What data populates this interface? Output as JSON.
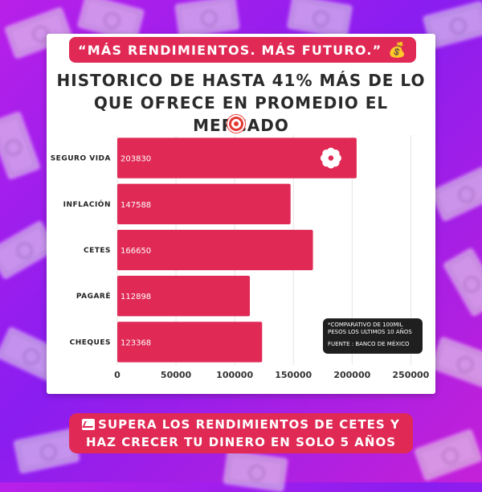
{
  "header": {
    "slogan": "“MÁS RENDIMIENTOS. MÁS FUTURO.”",
    "slogan_icon": "money-bag-icon",
    "title": "HISTORICO DE HASTA 41% MÁS DE LO QUE OFRECE EN PROMEDIO EL MERCADO",
    "title_icon": "target-icon"
  },
  "chart_data": {
    "type": "bar",
    "orientation": "horizontal",
    "categories": [
      "SEGURO VIDA",
      "INFLACIÓN",
      "CETES",
      "PAGARÉ",
      "CHEQUES"
    ],
    "values": [
      203830,
      147588,
      166650,
      112898,
      123368
    ],
    "xlim": [
      0,
      260000
    ],
    "xticks": [
      0,
      50000,
      100000,
      150000,
      200000,
      250000
    ],
    "grid": true,
    "bar_color": "#e02a55",
    "highlight_icon": "flower-logo-icon"
  },
  "note": {
    "line1": "*COMPARATIVO DE 100MIL PESOS LOS ULTIMOS 10 AÑOS",
    "line2": "FUENTE : BANCO DE MÉXICO"
  },
  "footer": {
    "text": "SUPERA LOS RENDIMIENTOS DE CETES Y HAZ CRECER TU DINERO EN SOLO 5 AÑOS",
    "icon": "chart-increasing-icon"
  },
  "colors": {
    "accent": "#e02a55",
    "background": "#9b1fea",
    "card": "#ffffff"
  }
}
